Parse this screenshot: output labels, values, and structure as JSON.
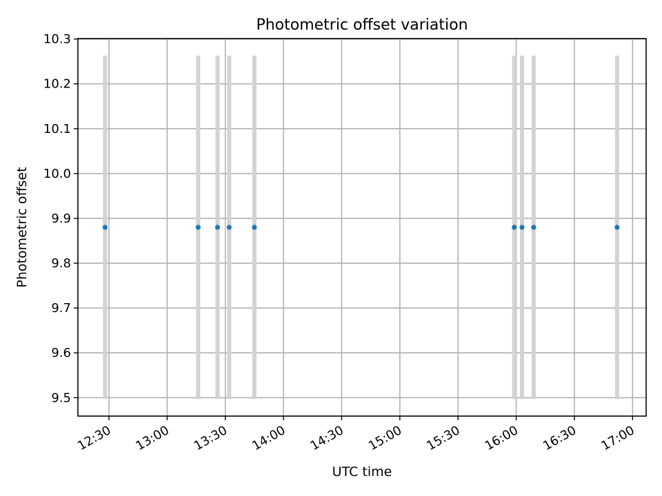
{
  "chart_data": {
    "type": "scatter",
    "title": "Photometric offset variation",
    "xlabel": "UTC time",
    "ylabel": "Photometric offset",
    "x_axis": {
      "type": "time",
      "range": [
        "12:14",
        "17:07"
      ],
      "ticks": [
        "12:30",
        "13:00",
        "13:30",
        "14:00",
        "14:30",
        "15:00",
        "15:30",
        "16:00",
        "16:30",
        "17:00"
      ]
    },
    "y_axis": {
      "range": [
        9.459,
        10.301
      ],
      "ticks": [
        "9.5",
        "9.6",
        "9.7",
        "9.8",
        "9.9",
        "10.0",
        "10.1",
        "10.2",
        "10.3"
      ]
    },
    "grid": true,
    "series": [
      {
        "points": [
          {
            "x": "12:28",
            "y": 9.88,
            "yerr_low": 9.497,
            "yerr_high": 10.263
          },
          {
            "x": "13:16",
            "y": 9.88,
            "yerr_low": 9.497,
            "yerr_high": 10.263
          },
          {
            "x": "13:26",
            "y": 9.88,
            "yerr_low": 9.497,
            "yerr_high": 10.263
          },
          {
            "x": "13:32",
            "y": 9.88,
            "yerr_low": 9.497,
            "yerr_high": 10.263
          },
          {
            "x": "13:45",
            "y": 9.88,
            "yerr_low": 9.497,
            "yerr_high": 10.263
          },
          {
            "x": "15:59",
            "y": 9.88,
            "yerr_low": 9.497,
            "yerr_high": 10.263
          },
          {
            "x": "16:03",
            "y": 9.88,
            "yerr_low": 9.497,
            "yerr_high": 10.263
          },
          {
            "x": "16:09",
            "y": 9.88,
            "yerr_low": 9.497,
            "yerr_high": 10.263
          },
          {
            "x": "16:52",
            "y": 9.88,
            "yerr_low": 9.497,
            "yerr_high": 10.263
          }
        ]
      }
    ],
    "colors": {
      "marker": "#1f77b4",
      "errorbar": "#d3d3d3",
      "grid": "#b0b0b0",
      "axes": "#000000"
    }
  }
}
